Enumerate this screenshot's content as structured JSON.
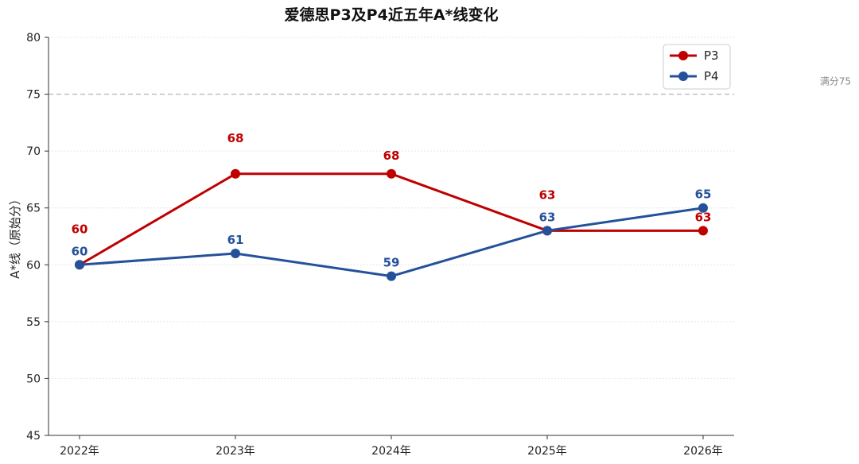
{
  "chart_data": {
    "type": "line",
    "title": "爱德思P3及P4近五年A*线变化",
    "ylabel": "A*线（原始分）",
    "xlabel": "",
    "categories": [
      "2022年",
      "2023年",
      "2024年",
      "2025年",
      "2026年"
    ],
    "ylim": [
      45,
      80
    ],
    "yticks": [
      45,
      50,
      55,
      60,
      65,
      70,
      75,
      80
    ],
    "grid": true,
    "legend_position": "top-right",
    "series": [
      {
        "name": "P3",
        "color": "#C00000",
        "values": [
          60,
          68,
          68,
          63,
          63
        ],
        "labels": [
          "60",
          "68",
          "68",
          "63",
          "63"
        ]
      },
      {
        "name": "P4",
        "color": "#24519A",
        "values": [
          60,
          61,
          59,
          63,
          65
        ],
        "labels": [
          "60",
          "61",
          "59",
          "63",
          "65"
        ]
      }
    ],
    "reference_line": {
      "value": 75,
      "label": "满分75",
      "color": "#BBBBBB"
    }
  }
}
